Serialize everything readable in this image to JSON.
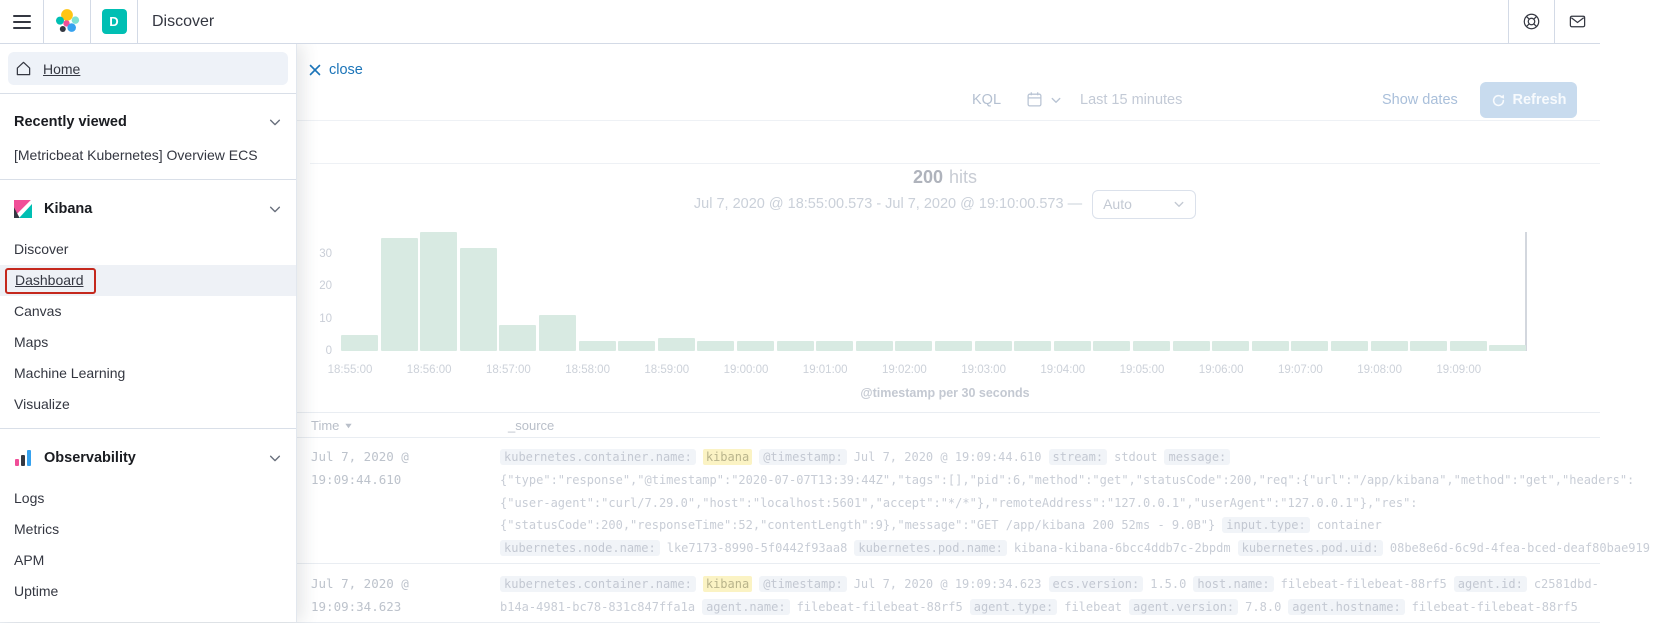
{
  "colors": {
    "accent_blue": "#1b74b8",
    "badge_teal": "#00bfb3",
    "bar_green_faded": "#d8eae2",
    "highlight_yellow": "#fbf3c4",
    "annotation_red": "#c4281d"
  },
  "header": {
    "title": "Discover",
    "space_badge": "D"
  },
  "icons": {
    "menu": "hamburger-icon",
    "logo": "elastic-logo",
    "help": "life-ring-icon",
    "mail": "envelope-icon",
    "home": "house-icon",
    "collapse": "chevron-down-icon",
    "date": "calendar-icon",
    "refresh": "refresh-arrow-icon",
    "close": "x-icon",
    "sort": "triangle-down-icon"
  },
  "sidebar": {
    "home_label": "Home",
    "recently_viewed": {
      "label": "Recently viewed",
      "items": [
        "[Metricbeat Kubernetes] Overview ECS"
      ]
    },
    "kibana": {
      "label": "Kibana",
      "items": [
        "Discover",
        "Dashboard",
        "Canvas",
        "Maps",
        "Machine Learning",
        "Visualize"
      ]
    },
    "observability": {
      "label": "Observability",
      "items": [
        "Logs",
        "Metrics",
        "APM",
        "Uptime"
      ]
    }
  },
  "toolbar": {
    "close_label": "close",
    "kql_label": "KQL",
    "time_range": "Last 15 minutes",
    "show_dates_label": "Show dates",
    "refresh_label": "Refresh"
  },
  "chart_header": {
    "hits_count": "200",
    "hits_label": "hits",
    "range_text": "Jul 7, 2020 @ 18:55:00.573 - Jul 7, 2020 @ 19:10:00.573 —",
    "interval_selected": "Auto"
  },
  "chart_data": {
    "type": "bar",
    "title": "200 hits",
    "xlabel": "@timestamp per 30 seconds",
    "ylabel": "",
    "interval_seconds": 30,
    "x_range": [
      "18:55:00",
      "19:10:00"
    ],
    "x_tick_labels": [
      "18:55:00",
      "18:56:00",
      "18:57:00",
      "18:58:00",
      "18:59:00",
      "19:00:00",
      "19:01:00",
      "19:02:00",
      "19:03:00",
      "19:04:00",
      "19:05:00",
      "19:06:00",
      "19:07:00",
      "19:08:00",
      "19:09:00"
    ],
    "y_ticks": [
      0,
      10,
      20,
      30
    ],
    "ylim": [
      0,
      40
    ],
    "values": [
      5,
      35,
      37,
      32,
      8,
      11,
      3,
      3,
      4,
      3,
      3,
      3,
      3,
      3,
      3,
      3,
      3,
      3,
      3,
      3,
      3,
      3,
      3,
      3,
      3,
      3,
      3,
      3,
      3,
      2
    ],
    "grid": false,
    "legend": false,
    "bar_color_faded": "#d8eae2",
    "current_time_marker": true
  },
  "table": {
    "columns": [
      "Time",
      "_source"
    ],
    "rows": [
      {
        "time": "Jul 7, 2020 @ 19:09:44.610",
        "lines": [
          [
            {
              "k": "field",
              "s": "kubernetes.container.name:"
            },
            {
              "k": "hl",
              "s": "kibana"
            },
            {
              "k": "field",
              "s": "@timestamp:"
            },
            {
              "k": "val",
              "s": "Jul 7, 2020 @ 19:09:44.610"
            },
            {
              "k": "field",
              "s": "stream:"
            },
            {
              "k": "val",
              "s": "stdout"
            },
            {
              "k": "field",
              "s": "message:"
            }
          ],
          [
            {
              "k": "val",
              "s": "{\"type\":\"response\",\"@timestamp\":\"2020-07-07T13:39:44Z\",\"tags\":[],\"pid\":6,\"method\":\"get\",\"statusCode\":200,\"req\":{\"url\":\"/app/kibana\",\"method\":\"get\",\"headers\":"
            }
          ],
          [
            {
              "k": "val",
              "s": "{\"user-agent\":\"curl/7.29.0\",\"host\":\"localhost:5601\",\"accept\":\"*/*\"},\"remoteAddress\":\"127.0.0.1\",\"userAgent\":\"127.0.0.1\"},\"res\":"
            }
          ],
          [
            {
              "k": "val",
              "s": "{\"statusCode\":200,\"responseTime\":52,\"contentLength\":9},\"message\":\"GET /app/kibana 200 52ms - 9.0B\"}"
            },
            {
              "k": "field",
              "s": "input.type:"
            },
            {
              "k": "val",
              "s": "container"
            }
          ],
          [
            {
              "k": "field",
              "s": "kubernetes.node.name:"
            },
            {
              "k": "val",
              "s": "lke7173-8990-5f0442f93aa8"
            },
            {
              "k": "field",
              "s": "kubernetes.pod.name:"
            },
            {
              "k": "val",
              "s": "kibana-kibana-6bcc4ddb7c-2bpdm"
            },
            {
              "k": "field",
              "s": "kubernetes.pod.uid:"
            },
            {
              "k": "val",
              "s": "08be8e6d-6c9d-4fea-bced-deaf80bae919"
            }
          ]
        ]
      },
      {
        "time": "Jul 7, 2020 @ 19:09:34.623",
        "lines": [
          [
            {
              "k": "field",
              "s": "kubernetes.container.name:"
            },
            {
              "k": "hl",
              "s": "kibana"
            },
            {
              "k": "field",
              "s": "@timestamp:"
            },
            {
              "k": "val",
              "s": "Jul 7, 2020 @ 19:09:34.623"
            },
            {
              "k": "field",
              "s": "ecs.version:"
            },
            {
              "k": "val",
              "s": "1.5.0"
            },
            {
              "k": "field",
              "s": "host.name:"
            },
            {
              "k": "val",
              "s": "filebeat-filebeat-88rf5"
            },
            {
              "k": "field",
              "s": "agent.id:"
            },
            {
              "k": "val",
              "s": "c2581dbd-"
            }
          ],
          [
            {
              "k": "val",
              "s": "b14a-4981-bc78-831c847ffa1a"
            },
            {
              "k": "field",
              "s": "agent.name:"
            },
            {
              "k": "val",
              "s": "filebeat-filebeat-88rf5"
            },
            {
              "k": "field",
              "s": "agent.type:"
            },
            {
              "k": "val",
              "s": "filebeat"
            },
            {
              "k": "field",
              "s": "agent.version:"
            },
            {
              "k": "val",
              "s": "7.8.0"
            },
            {
              "k": "field",
              "s": "agent.hostname:"
            },
            {
              "k": "val",
              "s": "filebeat-filebeat-88rf5"
            }
          ]
        ]
      }
    ]
  }
}
